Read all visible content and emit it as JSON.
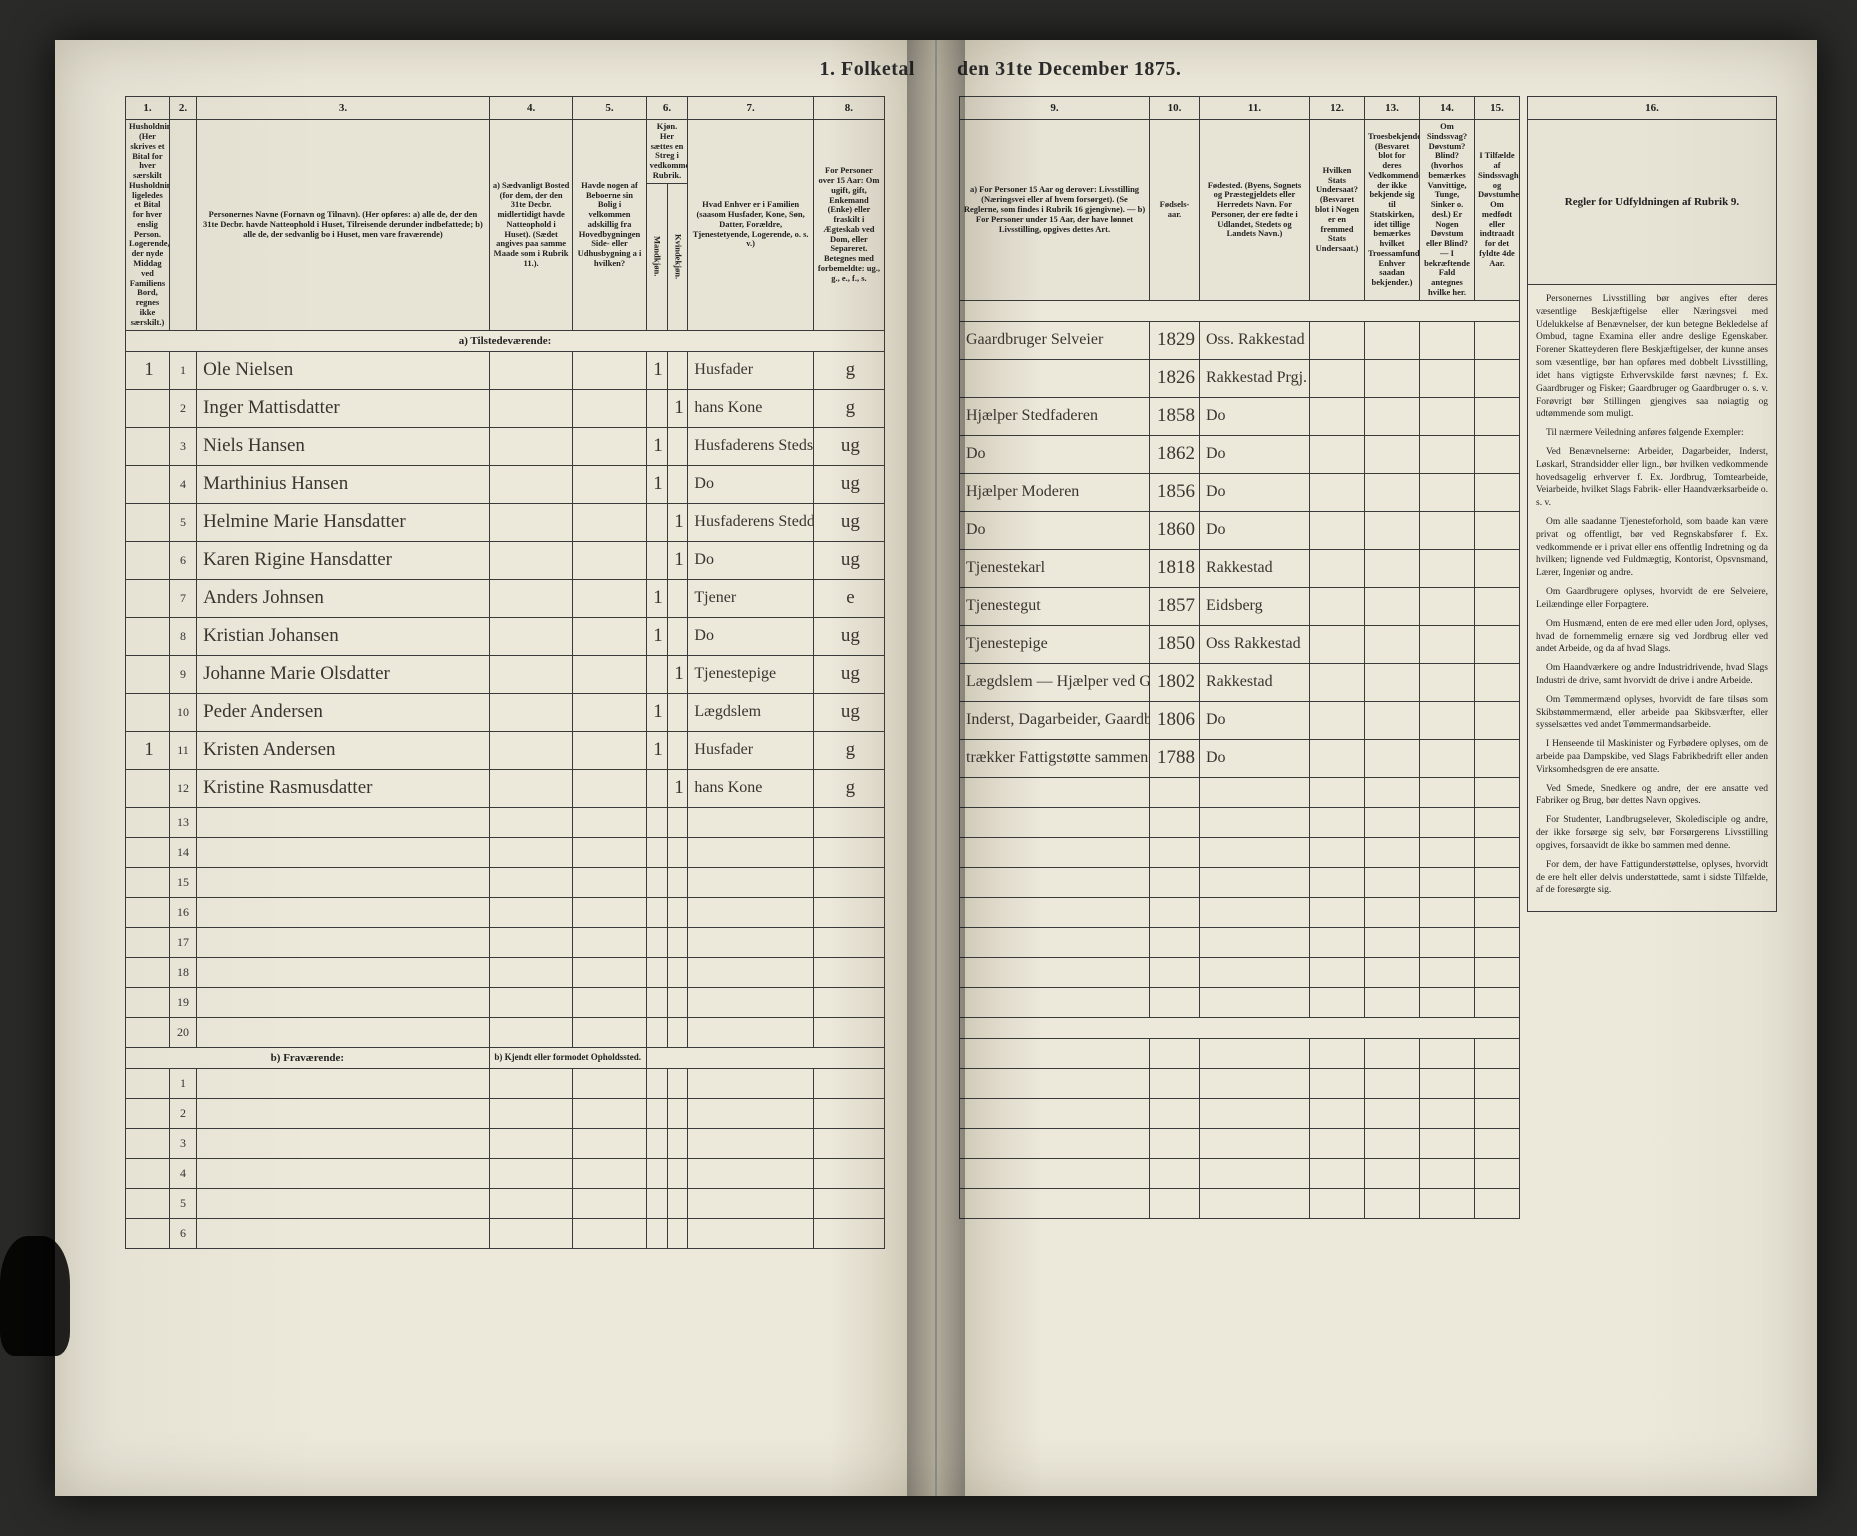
{
  "title_left": "1. Folketal",
  "title_right": "den 31te December 1875.",
  "left_cols": {
    "c1": "1.",
    "c2": "2.",
    "c3": "3.",
    "c4": "4.",
    "c5": "5.",
    "c6": "6.",
    "c7": "7.",
    "c8": "8."
  },
  "left_headers": {
    "h1": "Husholdninger. (Her skrives et Bital for hver særskilt Husholdning; ligeledes et Bital for hver enslig Person. Logerende, der nyde Middag ved Familiens Bord, regnes ikke særskilt.)",
    "h3": "Personernes Navne (Fornavn og Tilnavn). (Her opføres: a) alle de, der den 31te Decbr. havde Natteophold i Huset, Tilreisende derunder indbefattede; b) alle de, der sedvanlig bo i Huset, men vare fraværende)",
    "h4": "a) Sædvanligt Bosted (for dem, der den 31te Decbr. midlertidigt havde Natteophold i Huset). (Sædet angives paa samme Maade som i Rubrik 11.).",
    "h5": "Havde nogen af Beboerne sin Bolig i velkommen adskillig fra Hovedbygningen Side- eller Udhusbygning a i hvilken?",
    "h6": "Kjøn. Her sættes en Streg i vedkommende Rubrik.",
    "h6a": "Mandkjøn.",
    "h6b": "Kvindekjøn.",
    "h7": "Hvad Enhver er i Familien (saasom Husfader, Kone, Søn, Datter, Forældre, Tjenestetyende, Logerende, o. s. v.)",
    "h8": "For Personer over 15 Aar: Om ugift, gift, Enkemand (Enke) eller fraskilt i Ægteskab ved Dom, eller Separeret. Betegnes med forbemeldte: ug., g., e., f., s."
  },
  "right_cols": {
    "c9": "9.",
    "c10": "10.",
    "c11": "11.",
    "c12": "12.",
    "c13": "13.",
    "c14": "14.",
    "c15": "15.",
    "c16": "16."
  },
  "right_headers": {
    "h9": "a) For Personer 15 Aar og derover: Livsstilling (Næringsvei eller af hvem forsørget). (Se Reglerne, som findes i Rubrik 16 gjengivne). — b) For Personer under 15 Aar, der have lønnet Livsstilling, opgives dettes Art.",
    "h10": "Fødsels-aar.",
    "h11": "Fødested. (Byens, Sognets og Præstegjeldets eller Herredets Navn. For Personer, der ere fødte i Udlandet, Stedets og Landets Navn.)",
    "h12": "Hvilken Stats Undersaat? (Besvaret blot i Nogen er en fremmed Stats Undersaat.)",
    "h13": "Troesbekjendelse. (Besvaret blot for deres Vedkommende, der ikke bekjende sig til Statskirken, idet tillige bemærkes hvilket Troessamfund Enhver saadan bekjender.)",
    "h14": "Om Sindssvag? Døvstum? Blind? (hvorhos bemærkes Vanvittige, Tunge, Sinker o. desl.) Er Nogen Døvstum eller Blind? — I bekræftende Fald antegnes hvilke her.",
    "h15": "I Tilfælde af Sindssvaghed og Døvstumhed: Om medfødt eller indtraadt for det fyldte 4de Aar.",
    "h16": "Regler for Udfyldningen af Rubrik 9."
  },
  "section_a": "a) Tilstedeværende:",
  "section_b": "b) Fraværende:",
  "section_b_extra": "b) Kjendt eller formodet Opholdssted.",
  "rows": [
    {
      "hh": "1",
      "n": "1",
      "name": "Ole Nielsen",
      "c5": "1",
      "c6": "",
      "fam": "Husfader",
      "ms": "g",
      "occ": "Gaardbruger Selveier",
      "yr": "1829",
      "bp": "Oss. Rakkestad"
    },
    {
      "hh": "",
      "n": "2",
      "name": "Inger Mattisdatter",
      "c5": "",
      "c6": "1",
      "fam": "hans Kone",
      "ms": "g",
      "occ": "",
      "yr": "1826",
      "bp": "Rakkestad Prgj."
    },
    {
      "hh": "",
      "n": "3",
      "name": "Niels Hansen",
      "c5": "1",
      "c6": "",
      "fam": "Husfaderens Stedsøn",
      "ms": "ug",
      "occ": "Hjælper Stedfaderen",
      "yr": "1858",
      "bp": "Do"
    },
    {
      "hh": "",
      "n": "4",
      "name": "Marthinius Hansen",
      "c5": "1",
      "c6": "",
      "fam": "Do",
      "ms": "ug",
      "occ": "Do",
      "yr": "1862",
      "bp": "Do"
    },
    {
      "hh": "",
      "n": "5",
      "name": "Helmine Marie Hansdatter",
      "c5": "",
      "c6": "1",
      "fam": "Husfaderens Steddatter",
      "ms": "ug",
      "occ": "Hjælper Moderen",
      "yr": "1856",
      "bp": "Do"
    },
    {
      "hh": "",
      "n": "6",
      "name": "Karen Rigine Hansdatter",
      "c5": "",
      "c6": "1",
      "fam": "Do",
      "ms": "ug",
      "occ": "Do",
      "yr": "1860",
      "bp": "Do"
    },
    {
      "hh": "",
      "n": "7",
      "name": "Anders Johnsen",
      "c5": "1",
      "c6": "",
      "fam": "Tjener",
      "ms": "e",
      "occ": "Tjenestekarl",
      "yr": "1818",
      "bp": "Rakkestad"
    },
    {
      "hh": "",
      "n": "8",
      "name": "Kristian Johansen",
      "c5": "1",
      "c6": "",
      "fam": "Do",
      "ms": "ug",
      "occ": "Tjenestegut",
      "yr": "1857",
      "bp": "Eidsberg"
    },
    {
      "hh": "",
      "n": "9",
      "name": "Johanne Marie Olsdatter",
      "c5": "",
      "c6": "1",
      "fam": "Tjenestepige",
      "ms": "ug",
      "occ": "Tjenestepige",
      "yr": "1850",
      "bp": "Oss Rakkestad"
    },
    {
      "hh": "",
      "n": "10",
      "name": "Peder Andersen",
      "c5": "1",
      "c6": "",
      "fam": "Lægdslem",
      "ms": "ug",
      "occ": "Lægdslem — Hjælper ved Gaarden",
      "yr": "1802",
      "bp": "Rakkestad"
    },
    {
      "hh": "1",
      "n": "11",
      "name": "Kristen Andersen",
      "c5": "1",
      "c6": "",
      "fam": "Husfader",
      "ms": "g",
      "occ": "Inderst, Dagarbeider, Gaardbruger → delvis forsørget af Fattigvæsenet",
      "yr": "1806",
      "bp": "Do"
    },
    {
      "hh": "",
      "n": "12",
      "name": "Kristine Rasmusdatter",
      "c5": "",
      "c6": "1",
      "fam": "hans Kone",
      "ms": "g",
      "occ": "trækker Fattigstøtte sammen med…",
      "yr": "1788",
      "bp": "Do"
    }
  ],
  "blank": [
    "13",
    "14",
    "15",
    "16",
    "17",
    "18",
    "19",
    "20"
  ],
  "blank_b": [
    "1",
    "2",
    "3",
    "4",
    "5",
    "6"
  ],
  "rules": [
    "Personernes Livsstilling bør angives efter deres væsentlige Beskjæftigelse eller Næringsvei med Udelukkelse af Benævnelser, der kun betegne Bekledelse af Ombud, tagne Examina eller andre deslige Egenskaber. Forener Skatteyderen flere Beskjæftigelser, der kunne anses som væsentlige, bør han opføres med dobbelt Livsstilling, idet hans vigtigste Erhvervskilde først nævnes; f. Ex. Gaardbruger og Fisker; Gaardbruger og Gaardbruger o. s. v. Forøvrigt bør Stillingen gjengives saa nøiagtig og udtømmende som muligt.",
    "Til nærmere Veiledning anføres følgende Exempler:",
    "Ved Benævnelserne: Arbeider, Dagarbeider, Inderst, Løskarl, Strandsidder eller lign., bør hvilken vedkommende hovedsagelig erhverver f. Ex. Jordbrug, Tomte­arbeide, Veiarbeide, hvilket Slags Fabrik- eller Haandværksarbeide o. s. v.",
    "Om alle saadanne Tjenesteforhold, som baade kan være privat og offentligt, bør ved Regnskabsfører f. Ex. vedkommende er i privat eller ens offentlig Indretning og da hvilken; lignende ved Fuldmægtig, Kontorist, Opsvnsmand, Lærer, Ingeniør og andre.",
    "Om Gaardbrugere oplyses, hvorvidt de ere Selveiere, Leilændinge eller Forpagtere.",
    "Om Husmænd, enten de ere med eller uden Jord, oplyses, hvad de fornemmelig ernære sig ved Jordbrug eller ved andet Arbeide, og da af hvad Slags.",
    "Om Haandværkere og andre Industridrivende, hvad Slags Industri de drive, samt hvorvidt de drive i andre Arbeide.",
    "Om Tømmermænd oplyses, hvorvidt de fare tilsøs som Skibstømmermænd, eller arbeide paa Skibsværfter, eller sysselsættes ved andet Tømmermandsarbeide.",
    "I Henseende til Maskinister og Fyrbødere oplyses, om de arbeide paa Dampskibe, ved Slags Fabrikbedrift eller anden Virksomhedsgren de ere ansatte.",
    "Ved Smede, Snedkere og andre, der ere ansatte ved Fabriker og Brug, bør dettes Navn opgives.",
    "For Studenter, Landbrugselever, Skoledisciple og andre, der ikke forsørge sig selv, bør Forsørgerens Livsstilling opgives, forsaavidt de ikke bo sammen med denne.",
    "For dem, der have Fattigunderstøttelse, oplyses, hvorvidt de ere helt eller delvis understøttede, samt i sidste Tilfælde, af de foresørgte sig."
  ]
}
